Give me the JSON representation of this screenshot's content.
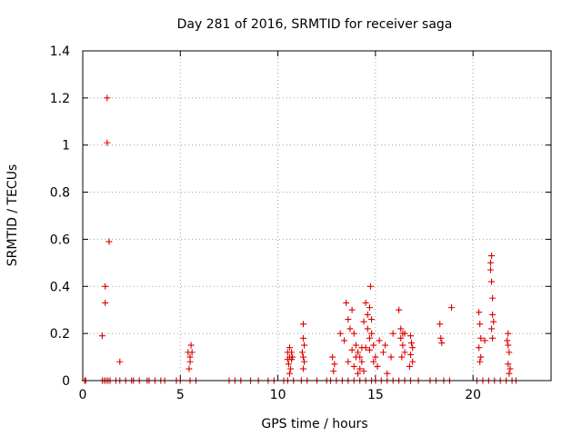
{
  "chart_data": {
    "type": "scatter",
    "title": "Day 281 of 2016, SRMTID for receiver saga",
    "xlabel": "GPS time / hours",
    "ylabel": "SRMTID / TECUs",
    "xlim": [
      0,
      24
    ],
    "ylim": [
      0,
      1.4
    ],
    "xticks": [
      0,
      5,
      10,
      15,
      20
    ],
    "yticks": [
      0,
      0.2,
      0.4,
      0.6,
      0.8,
      1,
      1.2,
      1.4
    ],
    "xtick_labels": [
      "0",
      "5",
      "10",
      "15",
      "20"
    ],
    "ytick_labels": [
      "0",
      "0.2",
      "0.4",
      "0.6",
      "0.8",
      "1",
      "1.2",
      "1.4"
    ],
    "grid": true,
    "marker": "+",
    "color": "#dd0000",
    "series": [
      {
        "name": "SRMTID",
        "points": [
          [
            0.1,
            0
          ],
          [
            0.15,
            0
          ],
          [
            1.0,
            0
          ],
          [
            1.1,
            0
          ],
          [
            1.2,
            0
          ],
          [
            1.3,
            0
          ],
          [
            1.4,
            0
          ],
          [
            1.7,
            0
          ],
          [
            1.9,
            0
          ],
          [
            2.2,
            0
          ],
          [
            2.5,
            0
          ],
          [
            2.6,
            0
          ],
          [
            2.9,
            0
          ],
          [
            3.3,
            0
          ],
          [
            3.4,
            0
          ],
          [
            3.7,
            0
          ],
          [
            4.0,
            0
          ],
          [
            4.2,
            0
          ],
          [
            4.8,
            0
          ],
          [
            5.0,
            0
          ],
          [
            5.5,
            0
          ],
          [
            5.8,
            0
          ],
          [
            7.5,
            0
          ],
          [
            7.8,
            0
          ],
          [
            8.1,
            0
          ],
          [
            8.6,
            0
          ],
          [
            9.0,
            0
          ],
          [
            9.5,
            0
          ],
          [
            9.8,
            0
          ],
          [
            10.3,
            0
          ],
          [
            10.5,
            0
          ],
          [
            10.8,
            0
          ],
          [
            11.2,
            0
          ],
          [
            11.5,
            0
          ],
          [
            12.0,
            0
          ],
          [
            12.5,
            0
          ],
          [
            12.7,
            0
          ],
          [
            13.0,
            0
          ],
          [
            13.3,
            0
          ],
          [
            13.6,
            0
          ],
          [
            13.9,
            0
          ],
          [
            14.2,
            0
          ],
          [
            14.5,
            0
          ],
          [
            14.8,
            0
          ],
          [
            15.0,
            0
          ],
          [
            15.3,
            0
          ],
          [
            15.6,
            0
          ],
          [
            15.9,
            0
          ],
          [
            16.2,
            0
          ],
          [
            16.5,
            0
          ],
          [
            16.8,
            0
          ],
          [
            17.2,
            0
          ],
          [
            17.8,
            0
          ],
          [
            18.1,
            0
          ],
          [
            18.5,
            0
          ],
          [
            18.8,
            0
          ],
          [
            20.2,
            0
          ],
          [
            20.5,
            0
          ],
          [
            20.8,
            0
          ],
          [
            21.1,
            0
          ],
          [
            21.4,
            0
          ],
          [
            21.7,
            0
          ],
          [
            22.0,
            0
          ],
          [
            22.2,
            0
          ],
          [
            1.0,
            0.19
          ],
          [
            1.15,
            0.33
          ],
          [
            1.15,
            0.4
          ],
          [
            1.25,
            1.2
          ],
          [
            1.25,
            1.01
          ],
          [
            1.35,
            0.59
          ],
          [
            1.9,
            0.08
          ],
          [
            5.4,
            0.12
          ],
          [
            5.5,
            0.1
          ],
          [
            5.55,
            0.15
          ],
          [
            5.5,
            0.08
          ],
          [
            5.45,
            0.05
          ],
          [
            5.6,
            0.12
          ],
          [
            10.5,
            0.12
          ],
          [
            10.6,
            0.1
          ],
          [
            10.6,
            0.14
          ],
          [
            10.7,
            0.09
          ],
          [
            10.55,
            0.07
          ],
          [
            10.65,
            0.05
          ],
          [
            10.7,
            0.12
          ],
          [
            10.5,
            0.09
          ],
          [
            10.6,
            0.03
          ],
          [
            10.75,
            0.1
          ],
          [
            11.3,
            0.24
          ],
          [
            11.3,
            0.18
          ],
          [
            11.35,
            0.15
          ],
          [
            11.25,
            0.12
          ],
          [
            11.3,
            0.1
          ],
          [
            11.35,
            0.08
          ],
          [
            11.3,
            0.05
          ],
          [
            12.8,
            0.1
          ],
          [
            12.9,
            0.07
          ],
          [
            12.85,
            0.04
          ],
          [
            13.2,
            0.2
          ],
          [
            13.4,
            0.17
          ],
          [
            13.5,
            0.33
          ],
          [
            13.6,
            0.26
          ],
          [
            13.7,
            0.22
          ],
          [
            13.8,
            0.3
          ],
          [
            13.9,
            0.2
          ],
          [
            14.0,
            0.15
          ],
          [
            14.0,
            0.1
          ],
          [
            14.1,
            0.12
          ],
          [
            14.2,
            0.05
          ],
          [
            14.3,
            0.08
          ],
          [
            14.4,
            0.25
          ],
          [
            14.5,
            0.14
          ],
          [
            14.5,
            0.33
          ],
          [
            14.6,
            0.28
          ],
          [
            14.6,
            0.22
          ],
          [
            14.7,
            0.31
          ],
          [
            14.7,
            0.18
          ],
          [
            14.7,
            0.13
          ],
          [
            14.75,
            0.4
          ],
          [
            14.8,
            0.26
          ],
          [
            14.8,
            0.2
          ],
          [
            14.9,
            0.15
          ],
          [
            14.9,
            0.08
          ],
          [
            15.0,
            0.1
          ],
          [
            15.1,
            0.06
          ],
          [
            15.2,
            0.17
          ],
          [
            15.4,
            0.12
          ],
          [
            15.5,
            0.15
          ],
          [
            15.6,
            0.03
          ],
          [
            15.8,
            0.1
          ],
          [
            15.9,
            0.2
          ],
          [
            13.9,
            0.06
          ],
          [
            14.1,
            0.03
          ],
          [
            14.3,
            0.14
          ],
          [
            13.8,
            0.13
          ],
          [
            14.4,
            0.04
          ],
          [
            14.2,
            0.1
          ],
          [
            13.6,
            0.08
          ],
          [
            16.2,
            0.3
          ],
          [
            16.3,
            0.22
          ],
          [
            16.3,
            0.18
          ],
          [
            16.4,
            0.2
          ],
          [
            16.4,
            0.15
          ],
          [
            16.5,
            0.12
          ],
          [
            16.5,
            0.2
          ],
          [
            16.35,
            0.1
          ],
          [
            16.8,
            0.19
          ],
          [
            16.85,
            0.16
          ],
          [
            16.9,
            0.14
          ],
          [
            16.8,
            0.11
          ],
          [
            16.9,
            0.08
          ],
          [
            16.75,
            0.06
          ],
          [
            18.3,
            0.24
          ],
          [
            18.35,
            0.18
          ],
          [
            18.4,
            0.16
          ],
          [
            18.9,
            0.31
          ],
          [
            20.3,
            0.29
          ],
          [
            20.35,
            0.24
          ],
          [
            20.4,
            0.18
          ],
          [
            20.3,
            0.14
          ],
          [
            20.4,
            0.1
          ],
          [
            20.35,
            0.08
          ],
          [
            20.6,
            0.17
          ],
          [
            20.9,
            0.5
          ],
          [
            20.95,
            0.53
          ],
          [
            20.9,
            0.47
          ],
          [
            20.95,
            0.42
          ],
          [
            21.0,
            0.35
          ],
          [
            21.0,
            0.28
          ],
          [
            21.05,
            0.25
          ],
          [
            20.95,
            0.22
          ],
          [
            21.0,
            0.18
          ],
          [
            21.8,
            0.2
          ],
          [
            21.8,
            0.15
          ],
          [
            21.85,
            0.12
          ],
          [
            21.8,
            0.07
          ],
          [
            21.9,
            0.05
          ],
          [
            21.85,
            0.03
          ],
          [
            21.75,
            0.17
          ]
        ]
      }
    ]
  }
}
